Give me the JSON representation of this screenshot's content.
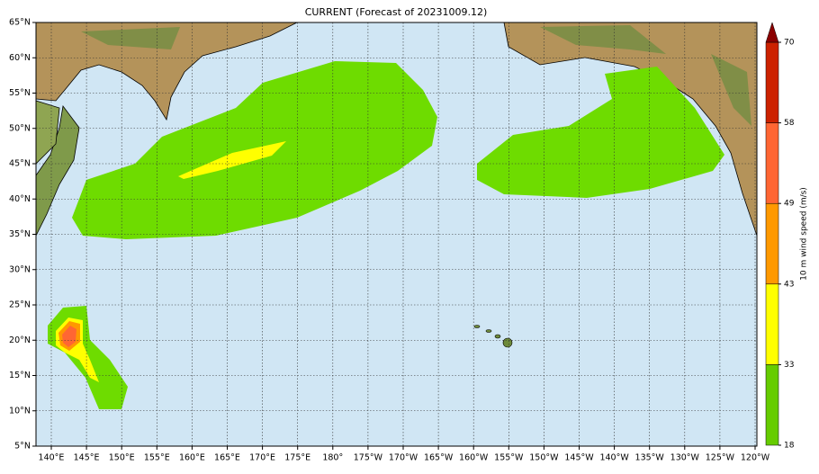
{
  "title": "CURRENT (Forecast of 20231009.12)",
  "lat_labels": [
    "65°N",
    "60°N",
    "55°N",
    "50°N",
    "45°N",
    "40°N",
    "35°N",
    "30°N",
    "25°N",
    "20°N",
    "15°N",
    "10°N",
    "5°N"
  ],
  "lon_labels": [
    "140°E",
    "145°E",
    "150°E",
    "155°E",
    "160°E",
    "165°E",
    "170°E",
    "175°E",
    "180°",
    "175°W",
    "170°W",
    "165°W",
    "160°W",
    "155°W",
    "150°W",
    "145°W",
    "140°W",
    "135°W",
    "130°W",
    "125°W",
    "120°W"
  ],
  "colorbar": {
    "label": "10 m wind speed (m/s)",
    "ticks": [
      18,
      33,
      43,
      49,
      58,
      70
    ],
    "colors": [
      "#66cc00",
      "#ffff00",
      "#ff9900",
      "#ff6633",
      "#cc2200"
    ],
    "extend_color": "#8b0000"
  }
}
